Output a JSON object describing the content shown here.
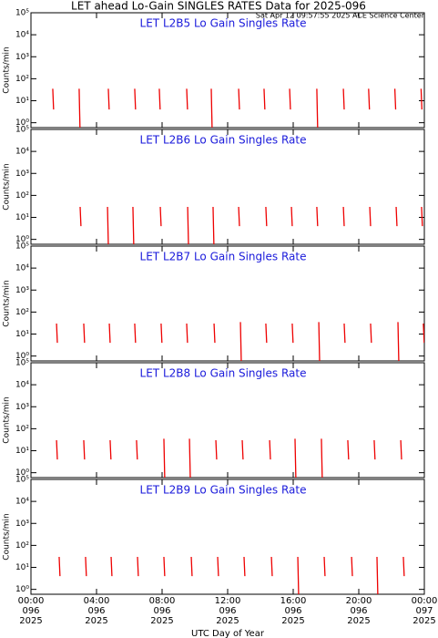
{
  "header": {
    "title": "LET ahead Lo-Gain SINGLES RATES Data for 2025-096",
    "subtitle": "Sat Apr 12 09:57:55 2025 ACE Science Center"
  },
  "chart_data": [
    {
      "type": "line",
      "title": "LET L2B5 Lo Gain Singles Rate",
      "ylabel": "Counts/min",
      "log_y": true,
      "xlim": [
        0,
        24
      ],
      "ylim": [
        0.6,
        100000
      ],
      "xticks": [
        0,
        4,
        8,
        12,
        16,
        20,
        24
      ],
      "yticks": [
        {
          "value": 1,
          "label": "10⁰"
        },
        {
          "value": 10,
          "label": "10¹"
        },
        {
          "value": 100,
          "label": "10²"
        },
        {
          "value": 1000,
          "label": "10³"
        },
        {
          "value": 10000,
          "label": "10⁴"
        },
        {
          "value": 100000,
          "label": "10⁵"
        }
      ],
      "series": [
        {
          "color": "#ee0000",
          "x": [
            1.33,
            1.38,
            1.38,
            2.94,
            2.99,
            2.99,
            4.72,
            4.77,
            4.77,
            6.33,
            6.38,
            6.38,
            7.83,
            7.88,
            7.88,
            9.5,
            9.55,
            9.55,
            11.0,
            11.05,
            11.05,
            12.67,
            12.72,
            12.72,
            14.22,
            14.27,
            14.27,
            15.78,
            15.83,
            15.83,
            17.44,
            17.49,
            17.49,
            19.06,
            19.11,
            19.11,
            20.6,
            20.65,
            20.65,
            22.2,
            22.25,
            22.25,
            23.8,
            23.85
          ],
          "values": [
            35,
            4,
            null,
            35,
            0.6,
            null,
            35,
            4,
            null,
            35,
            4,
            null,
            35,
            4,
            null,
            35,
            4,
            null,
            35,
            0.6,
            null,
            35,
            4,
            null,
            35,
            4,
            null,
            35,
            4,
            null,
            35,
            0.6,
            null,
            35,
            4,
            null,
            35,
            4,
            null,
            35,
            4,
            null,
            35,
            4
          ]
        }
      ]
    },
    {
      "type": "line",
      "title": "LET L2B6 Lo Gain Singles Rate",
      "ylabel": "Counts/min",
      "log_y": true,
      "xlim": [
        0,
        24
      ],
      "ylim": [
        0.6,
        100000
      ],
      "xticks": [
        0,
        4,
        8,
        12,
        16,
        20,
        24
      ],
      "yticks": [
        {
          "value": 1,
          "label": "10⁰"
        },
        {
          "value": 10,
          "label": "10¹"
        },
        {
          "value": 100,
          "label": "10²"
        },
        {
          "value": 1000,
          "label": "10³"
        },
        {
          "value": 10000,
          "label": "10⁴"
        },
        {
          "value": 100000,
          "label": "10⁵"
        }
      ],
      "series": [
        {
          "color": "#ee0000",
          "x": [
            3.0,
            3.05,
            3.05,
            4.67,
            4.72,
            4.72,
            6.22,
            6.27,
            6.27,
            7.89,
            7.94,
            7.94,
            9.56,
            9.61,
            9.61,
            11.11,
            11.16,
            11.16,
            12.67,
            12.72,
            12.72,
            14.33,
            14.38,
            14.38,
            15.89,
            15.94,
            15.94,
            17.44,
            17.49,
            17.49,
            19.06,
            19.11,
            19.11,
            20.67,
            20.72,
            20.72,
            22.28,
            22.33,
            22.33,
            23.83,
            23.88
          ],
          "values": [
            30,
            4,
            null,
            30,
            0.6,
            null,
            30,
            0.6,
            null,
            30,
            4,
            null,
            30,
            0.6,
            null,
            30,
            0.6,
            null,
            30,
            4,
            null,
            30,
            4,
            null,
            30,
            4,
            null,
            30,
            4,
            null,
            30,
            4,
            null,
            30,
            4,
            null,
            30,
            4,
            null,
            30,
            4
          ]
        }
      ]
    },
    {
      "type": "line",
      "title": "LET L2B7 Lo Gain Singles Rate",
      "ylabel": "Counts/min",
      "log_y": true,
      "xlim": [
        0,
        24
      ],
      "ylim": [
        0.6,
        100000
      ],
      "xticks": [
        0,
        4,
        8,
        12,
        16,
        20,
        24
      ],
      "yticks": [
        {
          "value": 1,
          "label": "10⁰"
        },
        {
          "value": 10,
          "label": "10¹"
        },
        {
          "value": 100,
          "label": "10²"
        },
        {
          "value": 1000,
          "label": "10³"
        },
        {
          "value": 10000,
          "label": "10⁴"
        },
        {
          "value": 100000,
          "label": "10⁵"
        }
      ],
      "series": [
        {
          "color": "#ee0000",
          "x": [
            1.56,
            1.61,
            1.61,
            3.22,
            3.27,
            3.27,
            4.78,
            4.83,
            4.83,
            6.33,
            6.38,
            6.38,
            7.94,
            7.99,
            7.99,
            9.5,
            9.55,
            9.55,
            11.17,
            11.22,
            11.22,
            12.78,
            12.83,
            12.83,
            14.33,
            14.38,
            14.38,
            15.94,
            15.99,
            15.99,
            17.56,
            17.61,
            17.61,
            19.11,
            19.16,
            19.16,
            20.72,
            20.77,
            20.77,
            22.39,
            22.44,
            22.44,
            23.94,
            23.99
          ],
          "values": [
            30,
            4,
            null,
            30,
            4,
            null,
            30,
            4,
            null,
            30,
            4,
            null,
            30,
            4,
            null,
            30,
            4,
            null,
            30,
            4,
            null,
            35,
            0.6,
            null,
            30,
            4,
            null,
            30,
            4,
            null,
            35,
            0.6,
            null,
            30,
            4,
            null,
            30,
            4,
            null,
            35,
            0.6,
            null,
            30,
            4
          ]
        }
      ]
    },
    {
      "type": "line",
      "title": "LET L2B8 Lo Gain Singles Rate",
      "ylabel": "Counts/min",
      "log_y": true,
      "xlim": [
        0,
        24
      ],
      "ylim": [
        0.6,
        100000
      ],
      "xticks": [
        0,
        4,
        8,
        12,
        16,
        20,
        24
      ],
      "yticks": [
        {
          "value": 1,
          "label": "10⁰"
        },
        {
          "value": 10,
          "label": "10¹"
        },
        {
          "value": 100,
          "label": "10²"
        },
        {
          "value": 1000,
          "label": "10³"
        },
        {
          "value": 10000,
          "label": "10⁴"
        },
        {
          "value": 100000,
          "label": "10⁵"
        }
      ],
      "series": [
        {
          "color": "#ee0000",
          "x": [
            1.56,
            1.61,
            1.61,
            3.22,
            3.27,
            3.27,
            4.83,
            4.88,
            4.88,
            6.44,
            6.49,
            6.49,
            8.11,
            8.16,
            8.16,
            9.67,
            9.72,
            9.72,
            11.28,
            11.33,
            11.33,
            12.89,
            12.94,
            12.94,
            14.56,
            14.61,
            14.61,
            16.11,
            16.16,
            16.16,
            17.72,
            17.77,
            17.77,
            19.33,
            19.38,
            19.38,
            20.94,
            20.99,
            20.99,
            22.56,
            22.61
          ],
          "values": [
            30,
            4,
            null,
            30,
            4,
            null,
            30,
            4,
            null,
            30,
            4,
            null,
            35,
            0.6,
            null,
            35,
            0.6,
            null,
            30,
            4,
            null,
            30,
            4,
            null,
            30,
            4,
            null,
            35,
            0.6,
            null,
            35,
            0.6,
            null,
            30,
            4,
            null,
            30,
            4,
            null,
            30,
            4
          ]
        }
      ]
    },
    {
      "type": "line",
      "title": "LET L2B9 Lo Gain Singles Rate",
      "ylabel": "Counts/min",
      "xlabel": "UTC Day of Year",
      "log_y": true,
      "xlim": [
        0,
        24
      ],
      "ylim": [
        0.6,
        100000
      ],
      "xticks": [
        {
          "value": 0,
          "label": "00:00 096 2025"
        },
        {
          "value": 4,
          "label": "04:00 096 2025"
        },
        {
          "value": 8,
          "label": "08:00 096 2025"
        },
        {
          "value": 12,
          "label": "12:00 096 2025"
        },
        {
          "value": 16,
          "label": "16:00 096 2025"
        },
        {
          "value": 20,
          "label": "20:00 096 2025"
        },
        {
          "value": 24,
          "label": "00:00 097 2025"
        }
      ],
      "yticks": [
        {
          "value": 1,
          "label": "10⁰"
        },
        {
          "value": 10,
          "label": "10¹"
        },
        {
          "value": 100,
          "label": "10²"
        },
        {
          "value": 1000,
          "label": "10³"
        },
        {
          "value": 10000,
          "label": "10⁴"
        },
        {
          "value": 100000,
          "label": "10⁵"
        }
      ],
      "series": [
        {
          "color": "#ee0000",
          "x": [
            1.72,
            1.77,
            1.77,
            3.33,
            3.38,
            3.38,
            4.89,
            4.94,
            4.94,
            6.5,
            6.55,
            6.55,
            8.11,
            8.16,
            8.16,
            9.78,
            9.83,
            9.83,
            11.39,
            11.44,
            11.44,
            13.0,
            13.05,
            13.05,
            14.67,
            14.72,
            14.72,
            16.28,
            16.33,
            16.33,
            17.89,
            17.94,
            17.94,
            19.56,
            19.61,
            19.61,
            21.11,
            21.16,
            21.16,
            22.72,
            22.77
          ],
          "values": [
            30,
            4,
            null,
            30,
            4,
            null,
            30,
            4,
            null,
            30,
            4,
            null,
            30,
            4,
            null,
            30,
            4,
            null,
            30,
            4,
            null,
            30,
            4,
            null,
            30,
            4,
            null,
            30,
            0.6,
            null,
            30,
            4,
            null,
            30,
            4,
            null,
            30,
            0.6,
            null,
            30,
            4
          ]
        }
      ]
    }
  ]
}
